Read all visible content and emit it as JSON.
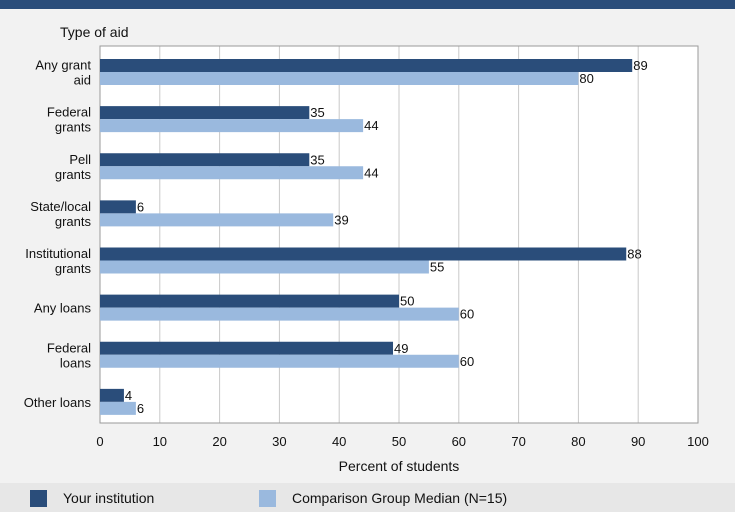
{
  "chart_data": {
    "type": "bar",
    "orientation": "horizontal",
    "y_axis_title": "Type of aid",
    "xlabel": "Percent of students",
    "xlim": [
      0,
      100
    ],
    "xticks": [
      0,
      10,
      20,
      30,
      40,
      50,
      60,
      70,
      80,
      90,
      100
    ],
    "grid": true,
    "legend_position": "bottom",
    "categories": [
      [
        "Any grant",
        "aid"
      ],
      [
        "Federal",
        "grants"
      ],
      [
        "Pell",
        "grants"
      ],
      [
        "State/local",
        "grants"
      ],
      [
        "Institutional",
        "grants"
      ],
      [
        "Any loans"
      ],
      [
        "Federal",
        "loans"
      ],
      [
        "Other loans"
      ]
    ],
    "series": [
      {
        "name": "Your institution",
        "color": "#2a4d7a",
        "values": [
          89,
          35,
          35,
          6,
          88,
          50,
          49,
          4
        ]
      },
      {
        "name": "Comparison Group Median (N=15)",
        "color": "#9ab9de",
        "values": [
          80,
          44,
          44,
          39,
          55,
          60,
          60,
          6
        ]
      }
    ]
  }
}
